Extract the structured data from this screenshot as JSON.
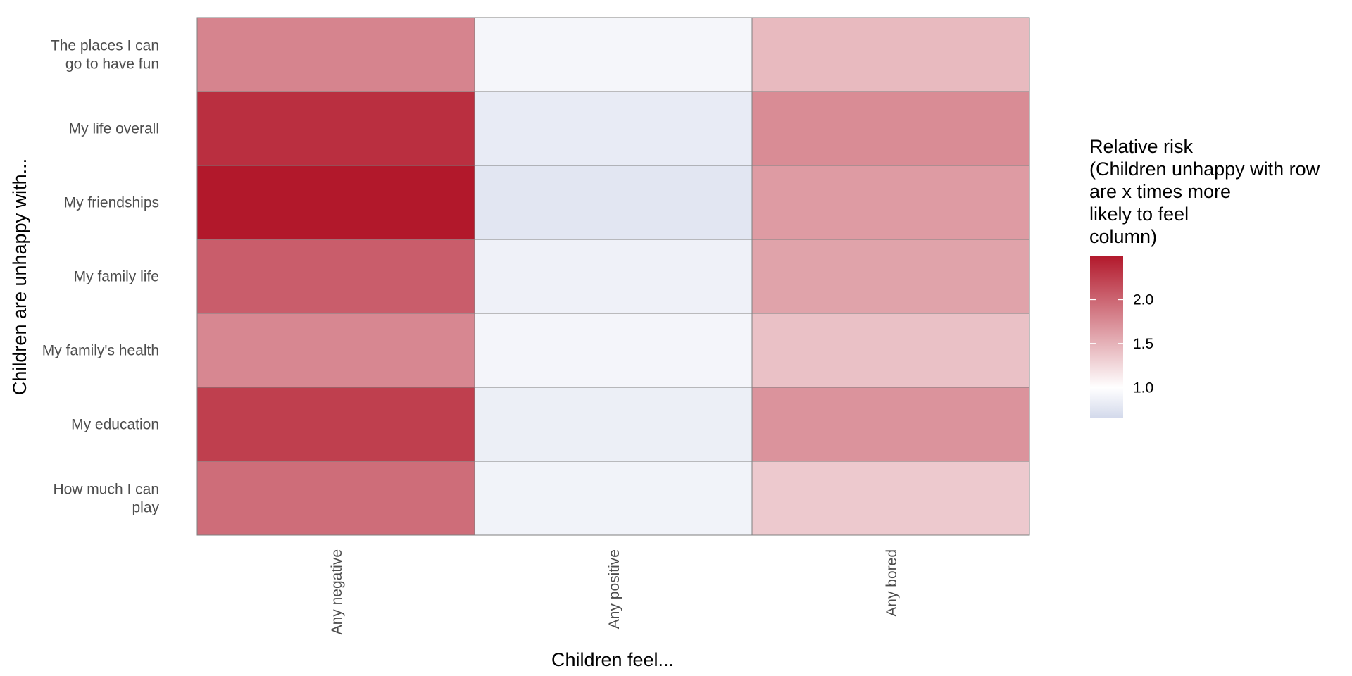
{
  "chart_data": {
    "type": "heatmap",
    "title": "",
    "xlabel": "Children feel...",
    "ylabel": "Children are unhappy with...",
    "columns": [
      "Any negative",
      "Any positive",
      "Any bored"
    ],
    "rows": [
      "The places I can\ngo to have fun",
      "My life overall",
      "My friendships",
      "My family life",
      "My family's health",
      "My education",
      "How much I can\nplay"
    ],
    "values": [
      [
        1.8,
        0.92,
        1.45
      ],
      [
        2.35,
        0.82,
        1.75
      ],
      [
        2.5,
        0.77,
        1.65
      ],
      [
        2.05,
        0.87,
        1.6
      ],
      [
        1.78,
        0.91,
        1.4
      ],
      [
        2.25,
        0.85,
        1.7
      ],
      [
        1.95,
        0.89,
        1.35
      ]
    ],
    "legend": {
      "title": "Relative risk\n(Children unhappy with row\nare x times more\nlikely to feel\ncolumn)",
      "ticks": [
        "1.0",
        "1.5",
        "2.0"
      ],
      "tick_values": [
        1.0,
        1.5,
        2.0
      ],
      "range": [
        0.65,
        2.5
      ],
      "midpoint": 1.0,
      "low_color": "#d3d9eb",
      "mid_color": "#ffffff",
      "high_color": "#b2182b",
      "position": "right"
    }
  }
}
